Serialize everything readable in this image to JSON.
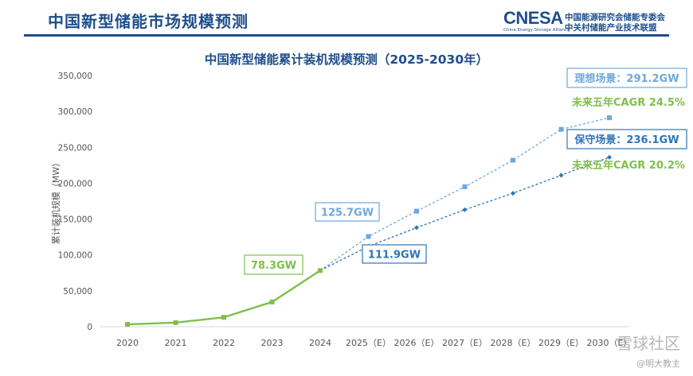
{
  "header": {
    "title": "中国新型储能市场规模预测",
    "logo": {
      "word": "CNESA",
      "sub": "China Energy Storage Alliance",
      "org_line1": "中国能源研究会储能专委会",
      "org_line2": "中关村储能产业技术联盟"
    }
  },
  "colors": {
    "title": "#1f4e8c",
    "historical": "#7fbf4a",
    "ideal": "#6fa8dc",
    "conservative": "#2e75b6",
    "axis_text": "#555555",
    "grid": "#e6e6e6"
  },
  "chart_data": {
    "type": "line",
    "title": "中国新型储能累计装机规模预测（2025-2030年）",
    "ylabel": "累计装机规模（MW）",
    "xlabel": "",
    "ylim": [
      0,
      350000
    ],
    "y_ticks": [
      "350,000",
      "300,000",
      "250,000",
      "200,000",
      "150,000",
      "100,000",
      "50,000",
      "0"
    ],
    "categories": [
      "2020",
      "2021",
      "2022",
      "2023",
      "2024",
      "2025（E）",
      "2026（E）",
      "2027（E）",
      "2028（E）",
      "2029（E）",
      "2030（E）"
    ],
    "grid": false,
    "legend": "none",
    "series": [
      {
        "key": "historical",
        "values": [
          3300,
          5700,
          13100,
          34500,
          78300,
          null,
          null,
          null,
          null,
          null,
          null
        ]
      },
      {
        "key": "ideal",
        "values": [
          null,
          null,
          null,
          null,
          78300,
          125700,
          161000,
          195000,
          232000,
          275000,
          291200
        ]
      },
      {
        "key": "conservative",
        "values": [
          null,
          null,
          null,
          null,
          78300,
          111900,
          138000,
          163000,
          186000,
          211000,
          236100
        ]
      }
    ],
    "annotations": {
      "hist_2024": "78.3GW",
      "ideal_2025": "125.7GW",
      "cons_2025": "111.9GW",
      "ideal_2030": "理想场景：291.2GW",
      "ideal_cagr": "未来五年CAGR 24.5%",
      "cons_2030": "保守场景：236.1GW",
      "cons_cagr": "未来五年CAGR 20.2%"
    }
  },
  "watermark": {
    "main": "雪球社区",
    "sub": "@明大教主"
  }
}
